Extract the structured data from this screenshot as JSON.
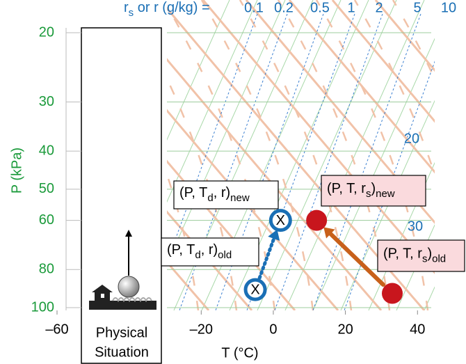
{
  "chart_data": {
    "type": "thermo",
    "mixing_ratio_caption": [
      {
        "t": "r"
      },
      {
        "t": "s",
        "sub": true
      },
      {
        "t": " or r (g/kg) = "
      }
    ],
    "mixing_ratio_labels": [
      "0.1",
      "0.2",
      "0.5",
      "1",
      "2",
      "5",
      "10"
    ],
    "side_annotations": [
      "20",
      "30"
    ],
    "y_label": "P (kPa)",
    "x_label": "T (°C)",
    "panel_label": [
      "Physical",
      "Situation"
    ],
    "ylim": [
      20,
      100
    ],
    "yticks": [
      20,
      30,
      40,
      50,
      60,
      80,
      100
    ],
    "y_scale": "log",
    "xlim": [
      -60,
      44
    ],
    "xticks": [
      {
        "value": -60,
        "label": "–60"
      },
      {
        "value": -20,
        "label": "–20"
      },
      0,
      20,
      40
    ],
    "axis_color": "#1a9a3a",
    "series": [
      {
        "color": "#1a6fb5",
        "marker": "ring",
        "marker_text": "X",
        "label_fill": "#ffffff",
        "T": [
          -5,
          2
        ],
        "P": [
          90,
          60
        ],
        "labels": [
          [
            {
              "t": "(P, T"
            },
            {
              "t": "d",
              "sub": true
            },
            {
              "t": ", r)"
            },
            {
              "t": "old",
              "sub": true
            }
          ],
          [
            {
              "t": "(P, T"
            },
            {
              "t": "d",
              "sub": true
            },
            {
              "t": ", r)"
            },
            {
              "t": "new",
              "sub": true
            }
          ]
        ]
      },
      {
        "color": "#c8161d",
        "line_color": "#c8601a",
        "marker": "dot",
        "label_fill": "#fadadd",
        "T": [
          33,
          12
        ],
        "P": [
          92,
          60
        ],
        "labels": [
          [
            {
              "t": "(P, T, r"
            },
            {
              "t": "s",
              "sub": true
            },
            {
              "t": ")"
            },
            {
              "t": "old",
              "sub": true
            }
          ],
          [
            {
              "t": "(P, T, r"
            },
            {
              "t": "s",
              "sub": true
            },
            {
              "t": ")"
            },
            {
              "t": "new",
              "sub": true
            }
          ]
        ]
      }
    ]
  }
}
